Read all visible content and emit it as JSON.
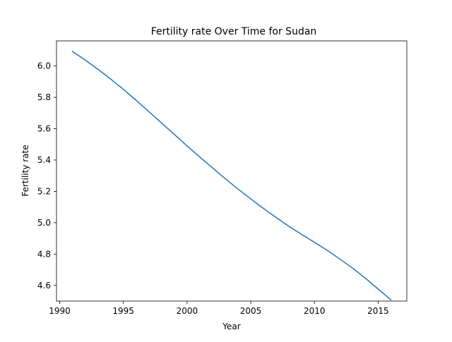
{
  "chart_data": {
    "type": "line",
    "title": "Fertility rate Over Time for Sudan",
    "xlabel": "Year",
    "ylabel": "Fertility rate",
    "xlim": [
      1989.75,
      2017.25
    ],
    "ylim": [
      4.5,
      6.16
    ],
    "xticks": [
      1990,
      1995,
      2000,
      2005,
      2010,
      2015
    ],
    "yticks": [
      4.6,
      4.8,
      5.0,
      5.2,
      5.4,
      5.6,
      5.8,
      6.0
    ],
    "xtick_labels": [
      "1990",
      "1995",
      "2000",
      "2005",
      "2010",
      "2015"
    ],
    "ytick_labels": [
      "4.6",
      "4.8",
      "5.0",
      "5.2",
      "5.4",
      "5.6",
      "5.8",
      "6.0"
    ],
    "grid": false,
    "series": [
      {
        "color": "#1f77b4",
        "x": [
          1991,
          1992,
          1993,
          1994,
          1995,
          1996,
          1997,
          1998,
          1999,
          2000,
          2001,
          2002,
          2003,
          2004,
          2005,
          2006,
          2007,
          2008,
          2009,
          2010,
          2011,
          2012,
          2013,
          2014,
          2015,
          2016
        ],
        "values": [
          6.093,
          6.038,
          5.979,
          5.917,
          5.851,
          5.781,
          5.709,
          5.636,
          5.563,
          5.49,
          5.419,
          5.35,
          5.281,
          5.215,
          5.152,
          5.091,
          5.033,
          4.977,
          4.925,
          4.875,
          4.824,
          4.768,
          4.71,
          4.646,
          4.577,
          4.508
        ]
      }
    ]
  }
}
